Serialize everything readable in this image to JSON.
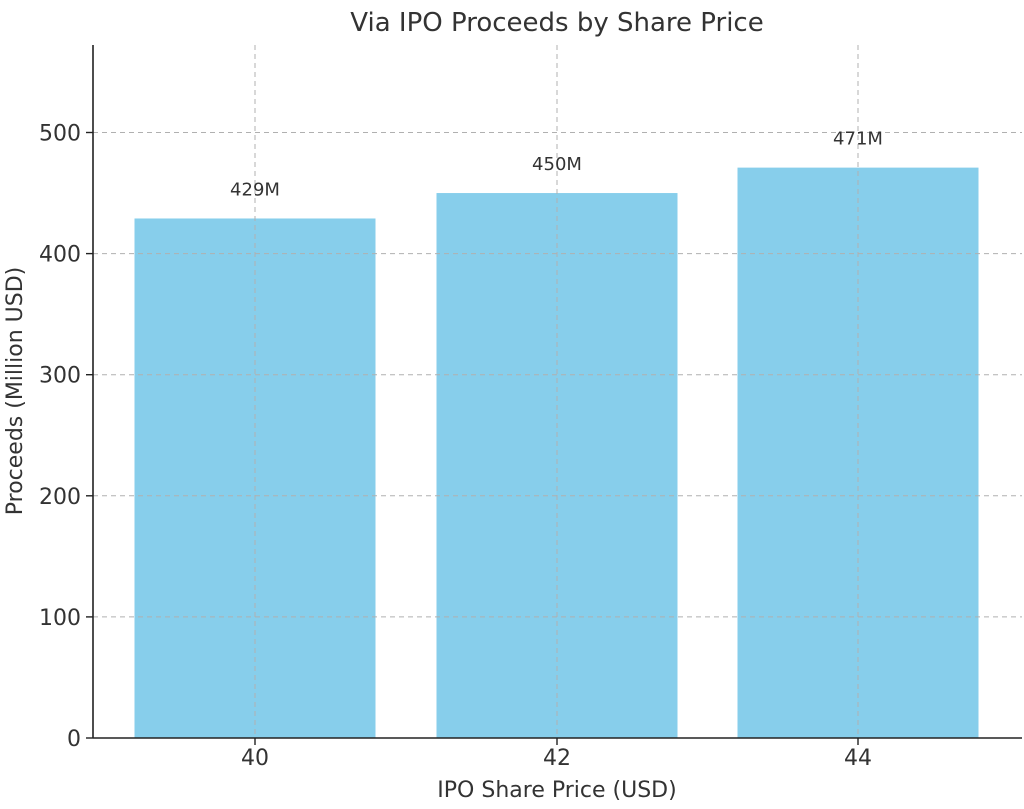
{
  "chart_data": {
    "type": "bar",
    "title": "Via IPO Proceeds by Share Price",
    "xlabel": "IPO Share Price (USD)",
    "ylabel": "Proceeds (Million USD)",
    "categories": [
      "40",
      "42",
      "44"
    ],
    "values": [
      429,
      450,
      471
    ],
    "data_labels": [
      "429M",
      "450M",
      "471M"
    ],
    "ylim": [
      0,
      570
    ],
    "yticks": [
      0,
      100,
      200,
      300,
      400,
      500
    ],
    "grid": true,
    "bar_color": "#87ceeb"
  }
}
